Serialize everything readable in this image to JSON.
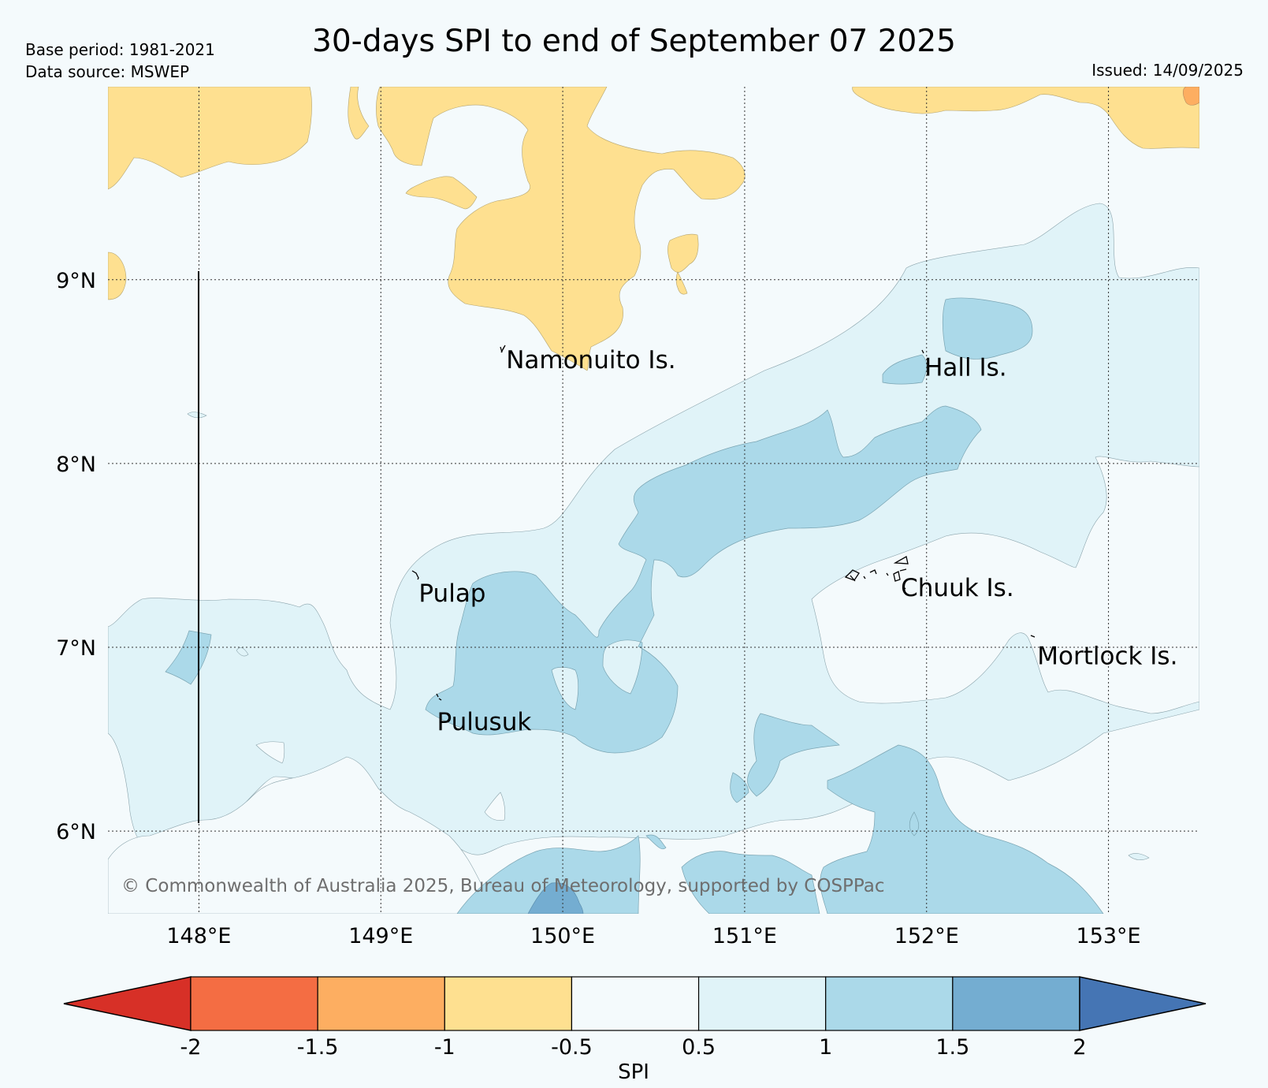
{
  "header": {
    "base_period": "Base period: 1981-2021",
    "data_source": "Data source: MSWEP",
    "title": "30-days SPI to end of September 07 2025",
    "issued": "Issued: 14/09/2025"
  },
  "map": {
    "lon_range": [
      147.5,
      153.5
    ],
    "lat_range": [
      5.55,
      10.05
    ],
    "lon_ticks": [
      {
        "value": 148,
        "label": "148°E"
      },
      {
        "value": 149,
        "label": "149°E"
      },
      {
        "value": 150,
        "label": "150°E"
      },
      {
        "value": 151,
        "label": "151°E"
      },
      {
        "value": 152,
        "label": "152°E"
      },
      {
        "value": 153,
        "label": "153°E"
      }
    ],
    "lat_ticks": [
      {
        "value": 9,
        "label": "9°N"
      },
      {
        "value": 8,
        "label": "8°N"
      },
      {
        "value": 7,
        "label": "7°N"
      },
      {
        "value": 6,
        "label": "6°N"
      }
    ],
    "grid": true,
    "place_labels": [
      {
        "name": "Namonuito Is.",
        "lon": 149.68,
        "lat": 8.57
      },
      {
        "name": "Hall Is.",
        "lon": 151.98,
        "lat": 8.53
      },
      {
        "name": "Pulap",
        "lon": 149.2,
        "lat": 7.3
      },
      {
        "name": "Chuuk Is.",
        "lon": 151.85,
        "lat": 7.33
      },
      {
        "name": "Mortlock Is.",
        "lon": 152.6,
        "lat": 6.96
      },
      {
        "name": "Pulusuk",
        "lon": 149.3,
        "lat": 6.6
      }
    ],
    "copyright": "© Commonwealth of Australia 2025, Bureau of Meteorology, supported by COSPPac"
  },
  "colorbar": {
    "label": "SPI",
    "ticks": [
      "-2",
      "-1.5",
      "-1",
      "-0.5",
      "0.5",
      "1",
      "1.5",
      "2"
    ],
    "colors": {
      "below_-2": "#d73027",
      "-2_to_-1.5": "#f46d43",
      "-1.5_to_-1": "#fdae61",
      "-1_to_-0.5": "#fee090",
      "-0.5_to_0.5": "#f4fafc",
      "0.5_to_1": "#e0f3f8",
      "1_to_1.5": "#abd9e9",
      "1.5_to_2": "#74add1",
      "above_2": "#4575b4"
    }
  }
}
